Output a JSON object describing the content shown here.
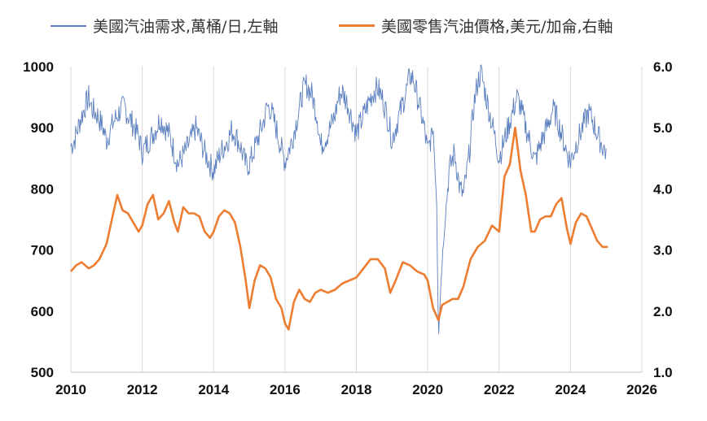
{
  "chart_data": {
    "type": "line",
    "title": "",
    "xlabel": "",
    "ylabel": "",
    "xlim": [
      2010,
      2026
    ],
    "xticks": [
      "2010",
      "2012",
      "2014",
      "2016",
      "2018",
      "2020",
      "2022",
      "2024",
      "2026"
    ],
    "ylim_left": [
      500,
      1000
    ],
    "yticks_left": [
      "1000",
      "900",
      "800",
      "700",
      "600",
      "500"
    ],
    "ylim_right": [
      1.0,
      6.0
    ],
    "yticks_right": [
      "6.0",
      "5.0",
      "4.0",
      "3.0",
      "2.0",
      "1.0"
    ],
    "grid": "vertical",
    "legend_position": "top",
    "series": [
      {
        "name": "美國汽油需求,萬桶/日,左軸",
        "axis": "left",
        "color": "#5b7fbf",
        "x": [
          2010.0,
          2010.1,
          2010.25,
          2010.4,
          2010.5,
          2010.6,
          2010.75,
          2010.9,
          2011.0,
          2011.2,
          2011.4,
          2011.5,
          2011.6,
          2011.75,
          2011.9,
          2012.0,
          2012.2,
          2012.4,
          2012.5,
          2012.6,
          2012.75,
          2012.9,
          2013.0,
          2013.2,
          2013.4,
          2013.5,
          2013.6,
          2013.75,
          2013.9,
          2014.0,
          2014.2,
          2014.4,
          2014.5,
          2014.6,
          2014.75,
          2014.9,
          2015.0,
          2015.2,
          2015.4,
          2015.5,
          2015.6,
          2015.75,
          2015.9,
          2016.0,
          2016.2,
          2016.4,
          2016.5,
          2016.6,
          2016.75,
          2016.9,
          2017.0,
          2017.2,
          2017.4,
          2017.5,
          2017.6,
          2017.75,
          2017.9,
          2018.0,
          2018.2,
          2018.4,
          2018.5,
          2018.6,
          2018.75,
          2018.9,
          2019.0,
          2019.2,
          2019.4,
          2019.5,
          2019.6,
          2019.75,
          2019.9,
          2020.0,
          2020.15,
          2020.25,
          2020.3,
          2020.4,
          2020.5,
          2020.6,
          2020.75,
          2020.9,
          2021.0,
          2021.15,
          2021.3,
          2021.4,
          2021.5,
          2021.6,
          2021.75,
          2021.9,
          2022.0,
          2022.2,
          2022.4,
          2022.5,
          2022.6,
          2022.75,
          2022.9,
          2023.0,
          2023.2,
          2023.4,
          2023.5,
          2023.6,
          2023.75,
          2023.9,
          2024.0,
          2024.2,
          2024.4,
          2024.5,
          2024.6,
          2024.75,
          2024.9,
          2025.0
        ],
        "values": [
          870,
          880,
          910,
          935,
          950,
          930,
          920,
          900,
          880,
          910,
          930,
          935,
          920,
          905,
          885,
          860,
          880,
          900,
          915,
          905,
          890,
          860,
          840,
          860,
          885,
          900,
          885,
          860,
          840,
          830,
          860,
          880,
          895,
          890,
          870,
          840,
          840,
          875,
          910,
          935,
          930,
          900,
          865,
          845,
          880,
          930,
          960,
          970,
          955,
          920,
          870,
          890,
          920,
          950,
          960,
          940,
          910,
          890,
          920,
          950,
          960,
          965,
          945,
          910,
          880,
          920,
          960,
          985,
          980,
          940,
          900,
          860,
          900,
          780,
          560,
          680,
          760,
          830,
          860,
          800,
          790,
          850,
          940,
          975,
          990,
          960,
          920,
          880,
          850,
          890,
          930,
          950,
          935,
          900,
          870,
          845,
          880,
          910,
          930,
          920,
          890,
          860,
          845,
          880,
          910,
          925,
          915,
          890,
          870,
          860
        ]
      },
      {
        "name": "美國零售汽油價格,美元/加侖,右軸",
        "axis": "right",
        "color": "#ed7d31",
        "x": [
          2010.0,
          2010.15,
          2010.3,
          2010.5,
          2010.65,
          2010.8,
          2011.0,
          2011.15,
          2011.3,
          2011.45,
          2011.6,
          2011.75,
          2011.9,
          2012.0,
          2012.15,
          2012.3,
          2012.45,
          2012.6,
          2012.75,
          2012.9,
          2013.0,
          2013.15,
          2013.3,
          2013.45,
          2013.6,
          2013.75,
          2013.9,
          2014.0,
          2014.15,
          2014.3,
          2014.45,
          2014.6,
          2014.75,
          2014.9,
          2015.0,
          2015.15,
          2015.3,
          2015.45,
          2015.6,
          2015.75,
          2015.9,
          2016.0,
          2016.1,
          2016.25,
          2016.4,
          2016.55,
          2016.7,
          2016.85,
          2017.0,
          2017.2,
          2017.4,
          2017.6,
          2017.8,
          2018.0,
          2018.2,
          2018.4,
          2018.6,
          2018.8,
          2018.95,
          2019.1,
          2019.3,
          2019.5,
          2019.7,
          2019.9,
          2020.0,
          2020.15,
          2020.3,
          2020.4,
          2020.55,
          2020.7,
          2020.85,
          2021.0,
          2021.2,
          2021.4,
          2021.6,
          2021.8,
          2022.0,
          2022.15,
          2022.3,
          2022.45,
          2022.6,
          2022.75,
          2022.9,
          2023.0,
          2023.15,
          2023.3,
          2023.45,
          2023.6,
          2023.75,
          2023.9,
          2024.0,
          2024.15,
          2024.3,
          2024.45,
          2024.6,
          2024.75,
          2024.9,
          2025.05
        ],
        "values": [
          2.65,
          2.75,
          2.8,
          2.7,
          2.75,
          2.85,
          3.1,
          3.5,
          3.9,
          3.65,
          3.6,
          3.45,
          3.3,
          3.4,
          3.75,
          3.9,
          3.5,
          3.6,
          3.8,
          3.45,
          3.3,
          3.7,
          3.6,
          3.6,
          3.55,
          3.3,
          3.2,
          3.3,
          3.55,
          3.65,
          3.6,
          3.45,
          3.05,
          2.5,
          2.05,
          2.5,
          2.75,
          2.7,
          2.55,
          2.2,
          2.05,
          1.8,
          1.7,
          2.15,
          2.35,
          2.2,
          2.15,
          2.3,
          2.35,
          2.3,
          2.35,
          2.45,
          2.5,
          2.55,
          2.7,
          2.85,
          2.85,
          2.7,
          2.3,
          2.5,
          2.8,
          2.75,
          2.65,
          2.6,
          2.5,
          2.05,
          1.85,
          2.1,
          2.15,
          2.2,
          2.2,
          2.4,
          2.85,
          3.05,
          3.15,
          3.4,
          3.3,
          4.2,
          4.4,
          5.0,
          4.3,
          3.9,
          3.3,
          3.3,
          3.5,
          3.55,
          3.55,
          3.75,
          3.85,
          3.35,
          3.1,
          3.45,
          3.6,
          3.55,
          3.35,
          3.15,
          3.05,
          3.05
        ]
      }
    ]
  }
}
